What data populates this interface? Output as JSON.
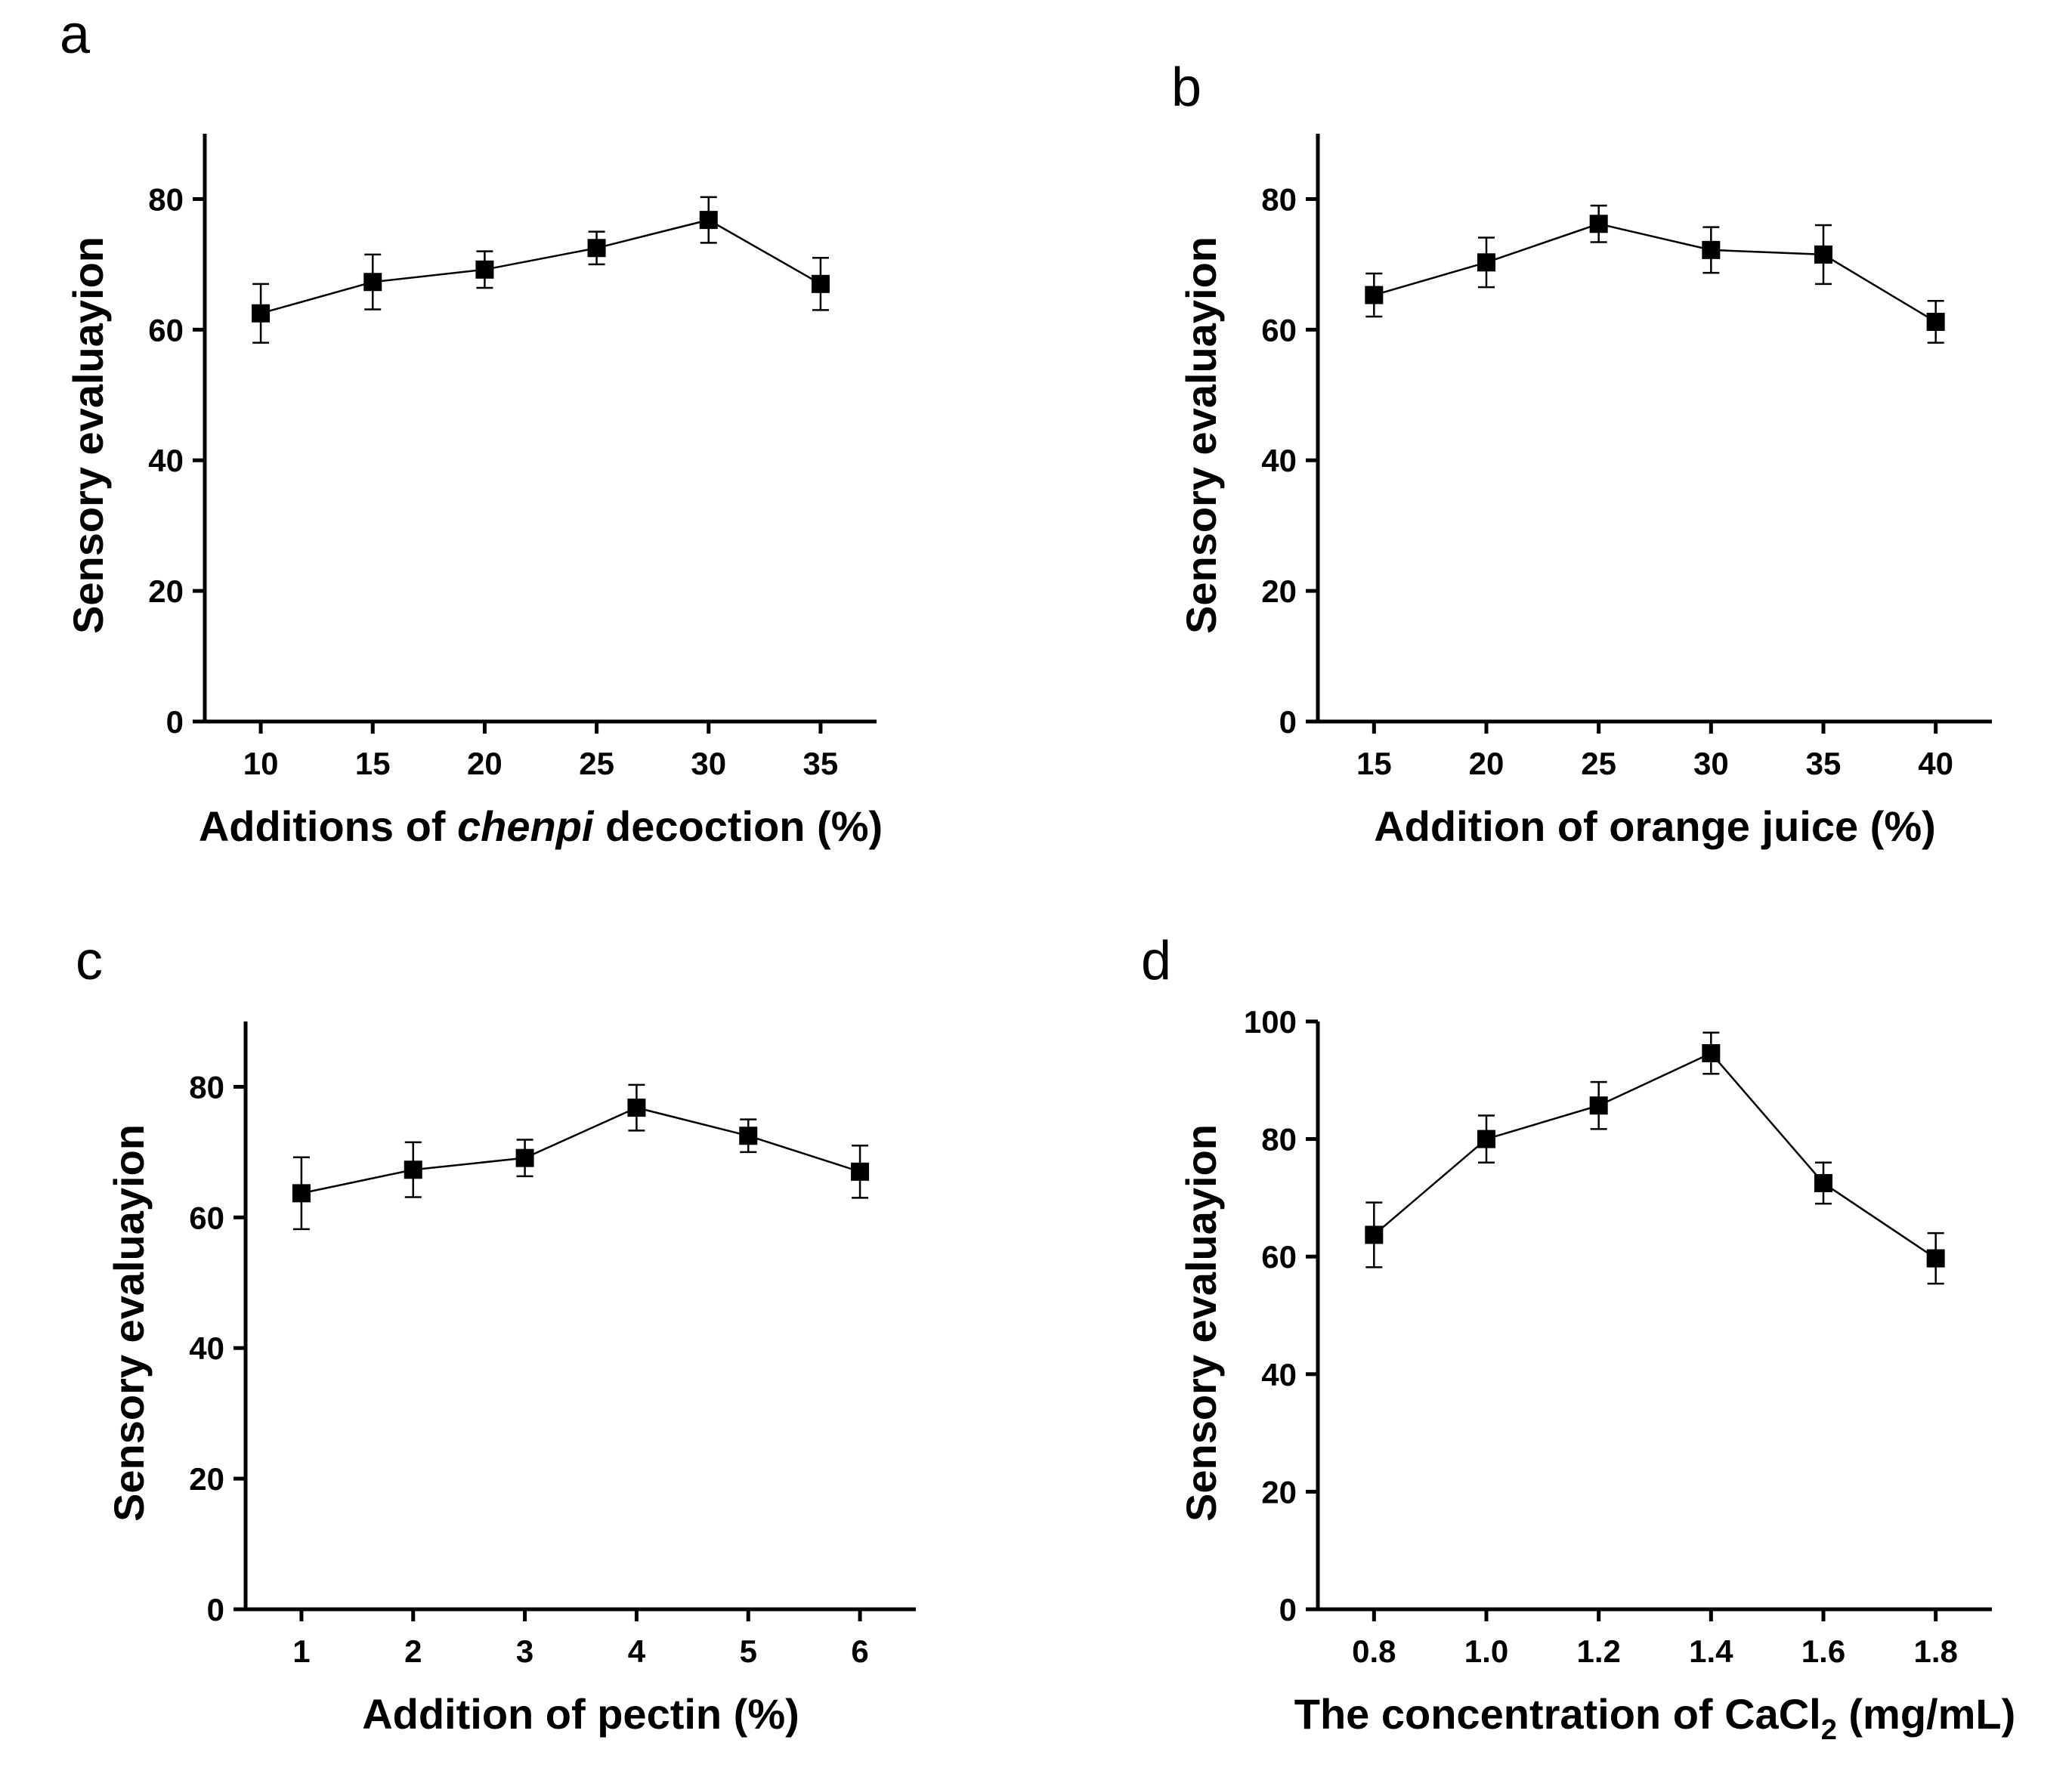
{
  "chart_data": [
    {
      "type": "line",
      "panel": "a",
      "y_label": "Sensory evaluayion",
      "x_label": [
        "Additions of ",
        "chenpi",
        " decoction (%)"
      ],
      "x": [
        10,
        15,
        20,
        25,
        30,
        35
      ],
      "values": [
        62.5,
        67.3,
        69.2,
        72.5,
        76.8,
        67
      ],
      "errors": [
        4.5,
        4.2,
        2.8,
        2.5,
        3.5,
        4
      ],
      "color": "#000000",
      "xlim": [
        7.5,
        37.5
      ],
      "xticks": [
        10,
        15,
        20,
        25,
        30,
        35
      ],
      "ylim": [
        0,
        90
      ],
      "yticks": [
        0,
        20,
        40,
        60,
        80
      ]
    },
    {
      "type": "line",
      "panel": "b",
      "y_label": "Sensory evaluayion",
      "x_label": [
        "Addition of orange juice (%)"
      ],
      "x": [
        15,
        20,
        25,
        30,
        35,
        40
      ],
      "values": [
        65.3,
        70.3,
        76.2,
        72.2,
        71.5,
        61.2
      ],
      "errors": [
        3.3,
        3.8,
        2.8,
        3.5,
        4.5,
        3.2
      ],
      "color": "#000000",
      "xlim": [
        12.5,
        42.5
      ],
      "xticks": [
        15,
        20,
        25,
        30,
        35,
        40
      ],
      "ylim": [
        0,
        90
      ],
      "yticks": [
        0,
        20,
        40,
        60,
        80
      ]
    },
    {
      "type": "line",
      "panel": "c",
      "y_label": "Sensory evaluayion",
      "x_label": [
        "Addition of pectin (%)"
      ],
      "x": [
        1,
        2,
        3,
        4,
        5,
        6
      ],
      "values": [
        63.7,
        67.3,
        69.1,
        76.8,
        72.5,
        67
      ],
      "errors": [
        5.5,
        4.2,
        2.8,
        3.5,
        2.5,
        4
      ],
      "color": "#000000",
      "xlim": [
        0.5,
        6.5
      ],
      "xticks": [
        1,
        2,
        3,
        4,
        5,
        6
      ],
      "ylim": [
        0,
        90
      ],
      "yticks": [
        0,
        20,
        40,
        60,
        80
      ]
    },
    {
      "type": "line",
      "panel": "d",
      "y_label": "Sensory evaluayion",
      "x_label": [
        "The concentration of CaCl",
        "2",
        " (mg/mL)"
      ],
      "x": [
        0.8,
        1,
        1.2,
        1.4,
        1.6,
        1.8
      ],
      "values": [
        63.7,
        80,
        85.7,
        94.6,
        72.5,
        59.7
      ],
      "errors": [
        5.5,
        4,
        4,
        3.5,
        3.5,
        4.3
      ],
      "color": "#000000",
      "xlim": [
        0.7,
        1.9
      ],
      "xticks": [
        0.8,
        {
          "value": 1,
          "label": "1.0"
        },
        1.2,
        1.4,
        1.6,
        1.8
      ],
      "ylim": [
        0,
        100
      ],
      "yticks": [
        0,
        20,
        40,
        60,
        80,
        100
      ]
    }
  ]
}
